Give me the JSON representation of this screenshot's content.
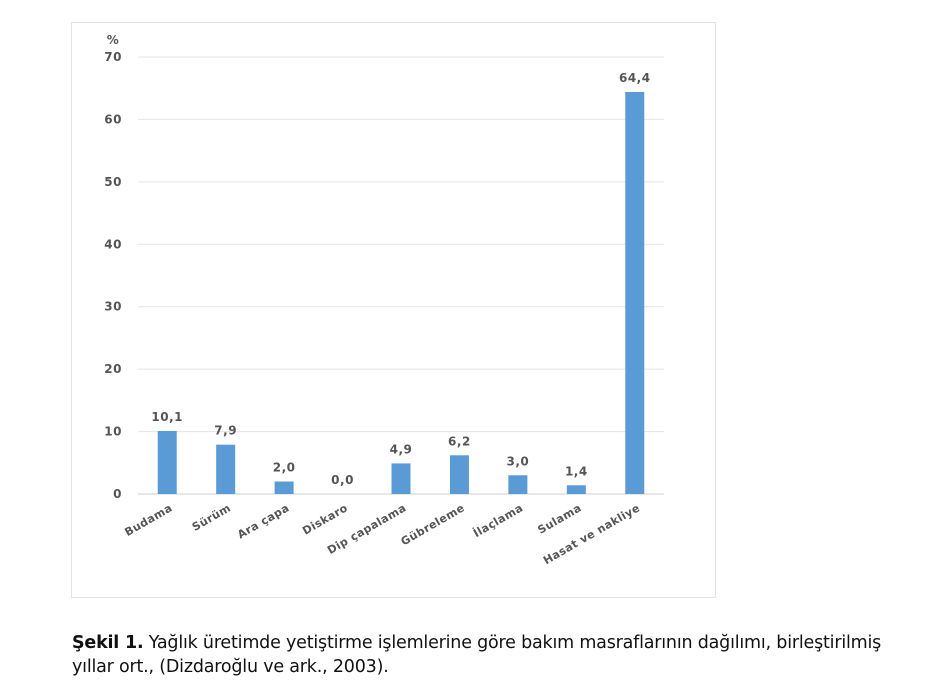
{
  "chart_data": {
    "type": "bar",
    "ylabel": "%",
    "ylim": [
      0,
      70
    ],
    "yticks": [
      0,
      10,
      20,
      30,
      40,
      50,
      60,
      70
    ],
    "grid": true,
    "categories": [
      "Budama",
      "Sürüm",
      "Ara çapa",
      "Diskaro",
      "Dip çapalama",
      "Gübreleme",
      "İlaçlama",
      "Sulama",
      "Hasat ve nakliye"
    ],
    "values": [
      10.1,
      7.9,
      2.0,
      0.0,
      4.9,
      6.2,
      3.0,
      1.4,
      64.4
    ],
    "value_labels": [
      "10,1",
      "7,9",
      "2,0",
      "0,0",
      "4,9",
      "6,2",
      "3,0",
      "1,4",
      "64,4"
    ],
    "bar_color": "#5b9bd5"
  },
  "caption": {
    "prefix": "Şekil 1.",
    "text": " Yağlık üretimde yetiştirme işlemlerine göre bakım masraflarının dağılımı, birleştirilmiş yıllar ort., (Dizdaroğlu ve ark., 2003)."
  }
}
